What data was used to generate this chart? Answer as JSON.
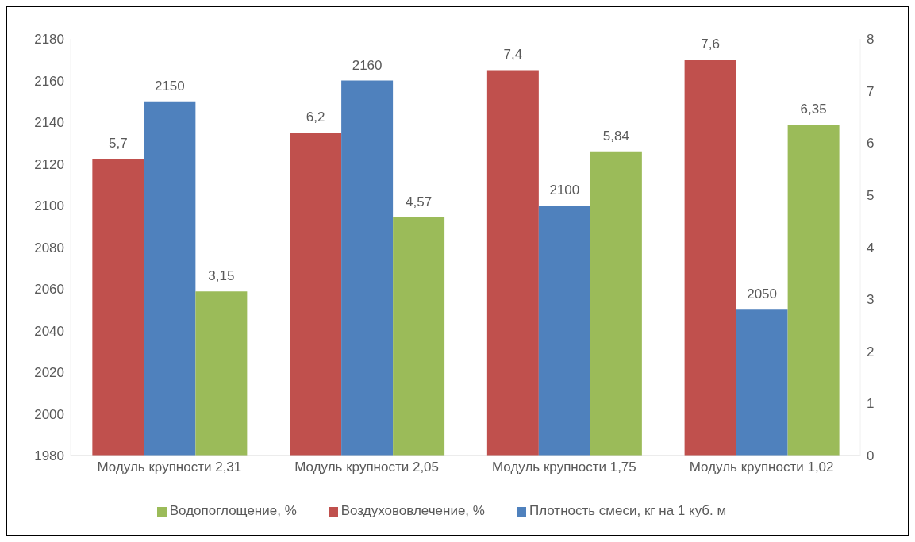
{
  "chart_data": {
    "type": "bar",
    "categories": [
      "Модуль крупности 2,31",
      "Модуль крупности 2,05",
      "Модуль крупности 1,75",
      "Модуль крупности 1,02"
    ],
    "series": [
      {
        "name": "Воздухововлечение, %",
        "color": "#c0504d",
        "axis": "y2",
        "values": [
          5.7,
          6.2,
          7.4,
          7.6
        ],
        "value_labels": [
          "5,7",
          "6,2",
          "7,4",
          "7,6"
        ]
      },
      {
        "name": "Плотность смеси, кг на 1 куб. м",
        "color": "#4f81bd",
        "values": [
          2150,
          2160,
          2100,
          2050
        ],
        "value_labels": [
          "2150",
          "2160",
          "2100",
          "2050"
        ]
      },
      {
        "name": "Водопоглощение, %",
        "color": "#9bbb59",
        "axis": "y2",
        "values": [
          3.15,
          4.57,
          5.84,
          6.35
        ],
        "value_labels": [
          "3,15",
          "4,57",
          "5,84",
          "6,35"
        ]
      }
    ],
    "ylim": [
      1980,
      2180
    ],
    "yticks": [
      1980,
      2000,
      2020,
      2040,
      2060,
      2080,
      2100,
      2120,
      2140,
      2160,
      2180
    ],
    "y2lim": [
      0,
      8
    ],
    "y2ticks": [
      0,
      1,
      2,
      3,
      4,
      5,
      6,
      7,
      8
    ],
    "legend": "bottom"
  }
}
